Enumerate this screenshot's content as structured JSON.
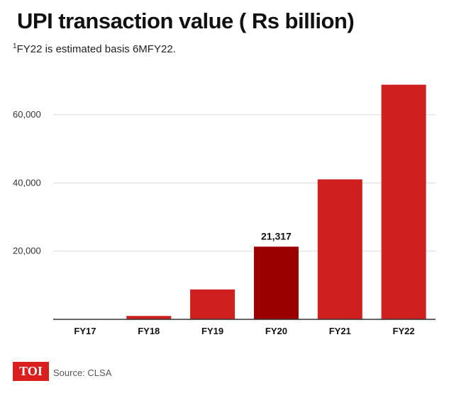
{
  "header": {
    "title": "UPI transaction value ( Rs billion)",
    "footnote_marker": "1",
    "footnote_text": "FY22 is estimated basis 6MFY22."
  },
  "footer": {
    "logo_text": "TOI",
    "source": "Source: CLSA"
  },
  "colors": {
    "bar": "#cf1f1f",
    "bar_highlight": "#9b0000",
    "gridline": "#d9d9d9",
    "axis": "#333333"
  },
  "chart_data": {
    "type": "bar",
    "title": "UPI transaction value ( Rs billion)",
    "xlabel": "",
    "ylabel": "",
    "categories": [
      "FY17",
      "FY18",
      "FY19",
      "FY20",
      "FY21",
      "FY22"
    ],
    "values": [
      70,
      1000,
      8770,
      21317,
      41040,
      68800
    ],
    "highlight_index": 3,
    "data_labels": [
      {
        "index": 3,
        "text": "21,317"
      }
    ],
    "yticks": [
      20000,
      40000,
      60000
    ],
    "ytick_labels": [
      "20,000",
      "40,000",
      "60,000"
    ],
    "ylim": [
      0,
      70000
    ],
    "grid": true
  }
}
